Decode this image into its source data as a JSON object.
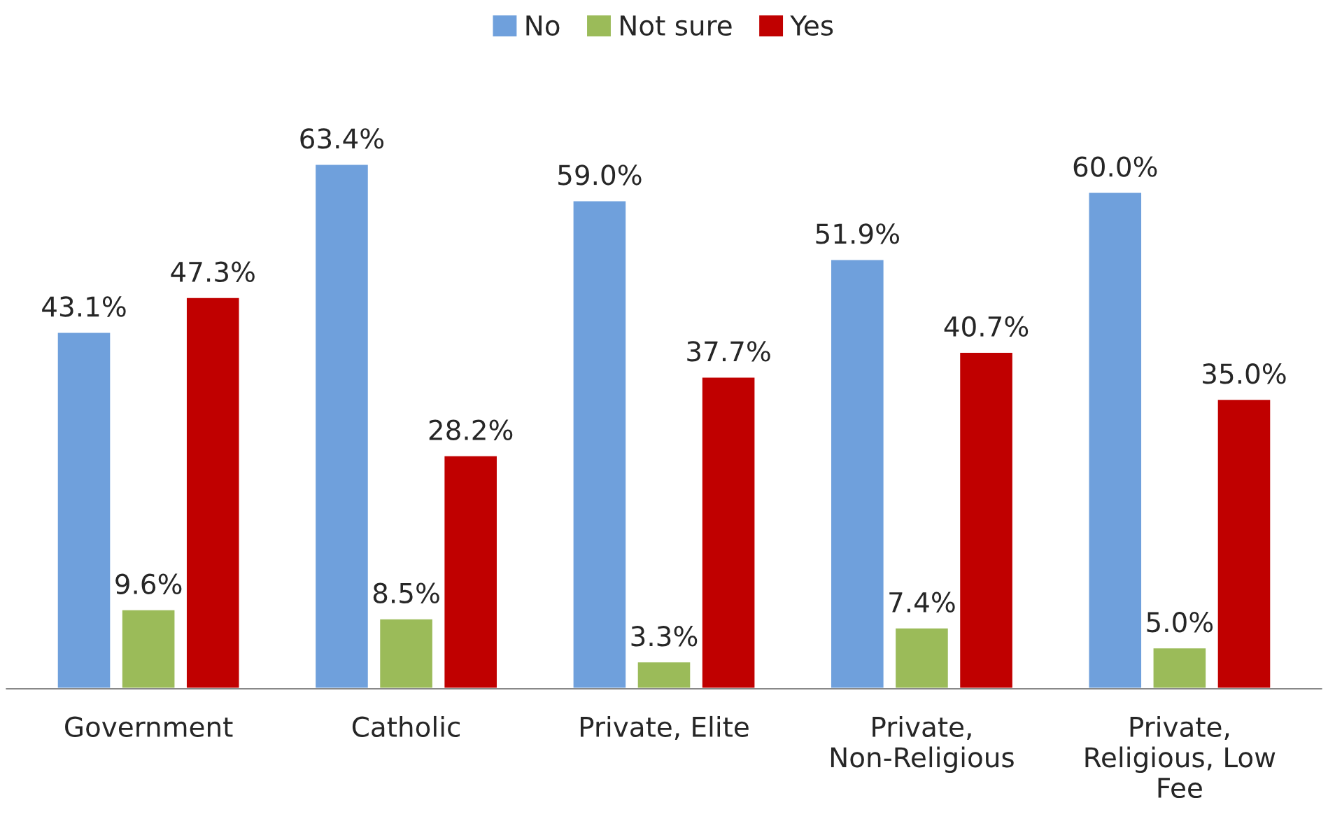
{
  "chart_data": {
    "type": "bar",
    "categories": [
      "Government",
      "Catholic",
      "Private, Elite",
      "Private, Non-Religious",
      "Private, Religious, Low Fee"
    ],
    "series": [
      {
        "name": "No",
        "color": "#6fa0dc",
        "values": [
          43.1,
          63.4,
          59.0,
          51.9,
          60.0
        ],
        "value_labels": [
          "43.1%",
          "63.4%",
          "59.0%",
          "51.9%",
          "60.0%"
        ]
      },
      {
        "name": "Not sure",
        "color": "#9bbb59",
        "values": [
          9.6,
          8.5,
          3.3,
          7.4,
          5.0
        ],
        "value_labels": [
          "9.6%",
          "8.5%",
          "3.3%",
          "7.4%",
          "5.0%"
        ]
      },
      {
        "name": "Yes",
        "color": "#c00000",
        "values": [
          47.3,
          28.2,
          37.7,
          40.7,
          35.0
        ],
        "value_labels": [
          "47.3%",
          "28.2%",
          "37.7%",
          "40.7%",
          "35.0%"
        ]
      }
    ],
    "legend": "top",
    "tick_labels": "x"
  }
}
